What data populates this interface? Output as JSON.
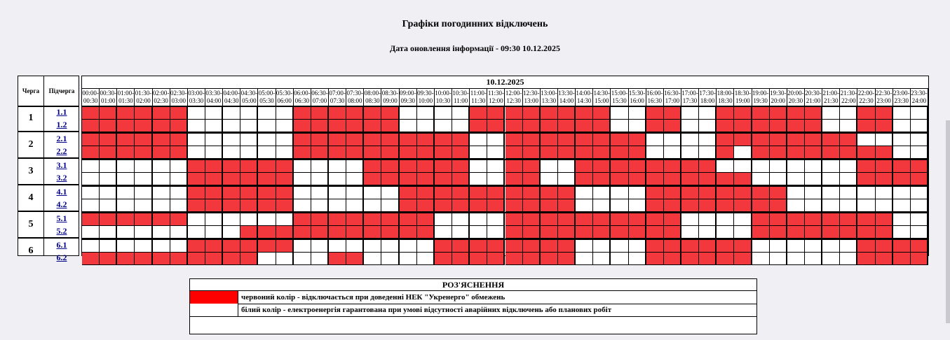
{
  "page": {
    "title": "Графіки погодинних відключень",
    "updated": "Дата оновлення інформації - 09:30 10.12.2025"
  },
  "table": {
    "queue_header": "Черга",
    "subqueue_header": "Підчерга",
    "date": "10.12.2025",
    "times": [
      "00:00-00:30",
      "00:30-01:00",
      "01:00-01:30",
      "01:30-02:00",
      "02:00-02:30",
      "02:30-03:00",
      "03:00-03:30",
      "03:30-04:00",
      "04:00-04:30",
      "04:30-05:00",
      "05:00-05:30",
      "05:30-06:00",
      "06:00-06:30",
      "06:30-07:00",
      "07:00-07:30",
      "07:30-08:00",
      "08:00-08:30",
      "08:30-09:00",
      "09:00-09:30",
      "09:30-10:00",
      "10:00-10:30",
      "10:30-11:00",
      "11:00-11:30",
      "11:30-12:00",
      "12:00-12:30",
      "12:30-13:00",
      "13:00-13:30",
      "13:30-14:00",
      "14:00-14:30",
      "14:30-15:00",
      "15:00-15:30",
      "15:30-16:00",
      "16:00-16:30",
      "16:30-17:00",
      "17:00-17:30",
      "17:30-18:00",
      "18:00-18:30",
      "18:30-19:00",
      "19:00-19:30",
      "19:30-20:00",
      "20:00-20:30",
      "20:30-21:00",
      "21:00-21:30",
      "21:30-22:00",
      "22:00-22:30",
      "22:30-23:00",
      "23:00-23:30",
      "23:30-24:00"
    ],
    "queues": [
      {
        "queue": "1",
        "subqueues": [
          {
            "name": "1.1",
            "outages": "111111000000111111000011111111001100111111001100"
          },
          {
            "name": "1.2",
            "outages": "111111000000111111000011111111001100111111001100"
          }
        ]
      },
      {
        "name_unused": "",
        "queue": "2",
        "subqueues": [
          {
            "name": "2.1",
            "outages": "111111000000111111111100111111110000111111110000"
          },
          {
            "name": "2.2",
            "outages": "111111000000111111111100111111110000101111111100"
          }
        ]
      },
      {
        "queue": "3",
        "subqueues": [
          {
            "name": "3.1",
            "outages": "000000111111000011111100110011111111000000001111"
          },
          {
            "name": "3.2",
            "outages": "000000111111000011111100110011111111110000001111"
          }
        ]
      },
      {
        "queue": "4",
        "subqueues": [
          {
            "name": "4.1",
            "outages": "000000111111000000111111111100001111111100000000"
          },
          {
            "name": "4.2",
            "outages": "000000111111000000111111111100001111111100000000"
          }
        ]
      },
      {
        "queue": "5",
        "subqueues": [
          {
            "name": "5.1",
            "outages": "111111000000111111110000111111111100001111111100"
          },
          {
            "name": "5.2",
            "outages": "000000000111111111110000111111111100001111111100"
          }
        ]
      },
      {
        "queue": "6",
        "subqueues": [
          {
            "name": "6.1",
            "outages": "000000111111000000001111111100001111110000001111"
          },
          {
            "name": "6.2",
            "outages": "111111111100001100001111111100001111110000001111"
          }
        ]
      }
    ]
  },
  "legend": {
    "title": "РОЗ'ЯСНЕННЯ",
    "red_text": "червоний колір - відключається при доведенні НЕК \"Укренерго\" обмежень",
    "white_text": "білий колір - електроенергія гарантована при умові відсутності аварійних відключень або планових робіт",
    "red_color": "#ff0000",
    "white_color": "#ffffff",
    "outage_color": "#f2383d"
  }
}
